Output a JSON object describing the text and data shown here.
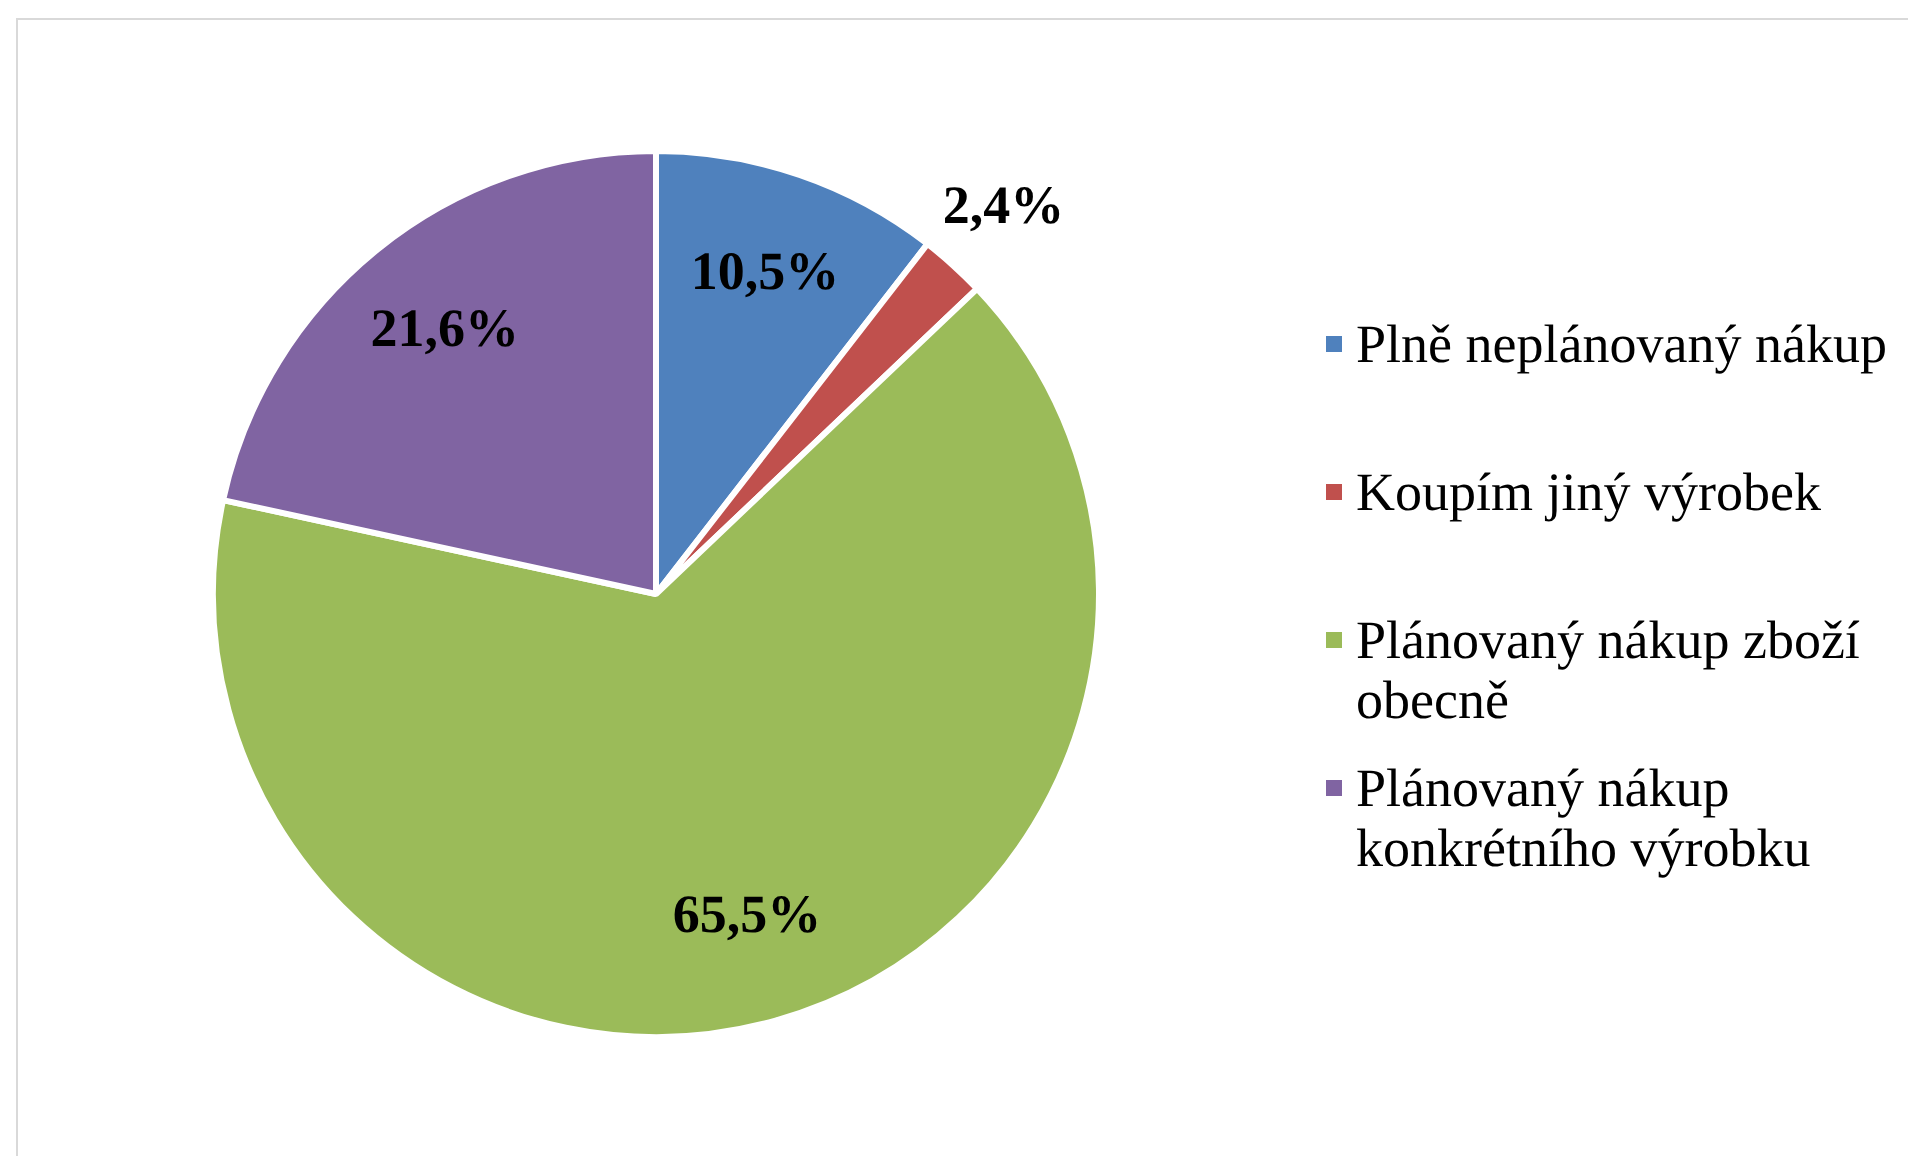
{
  "chart_data": {
    "type": "pie",
    "categories": [
      "Plně neplánovaný nákup",
      "Koupím jiný výrobek",
      "Plánovaný nákup zboží obecně",
      "Plánovaný nákup konkrétního výrobku"
    ],
    "values": [
      10.5,
      2.4,
      65.5,
      21.6
    ],
    "colors": [
      "#4f81bd",
      "#c0504d",
      "#9bbb59",
      "#8064a2"
    ],
    "value_labels": [
      "10,5%",
      "2,4%",
      "65,5%",
      "21,6%"
    ],
    "legend": "right"
  }
}
